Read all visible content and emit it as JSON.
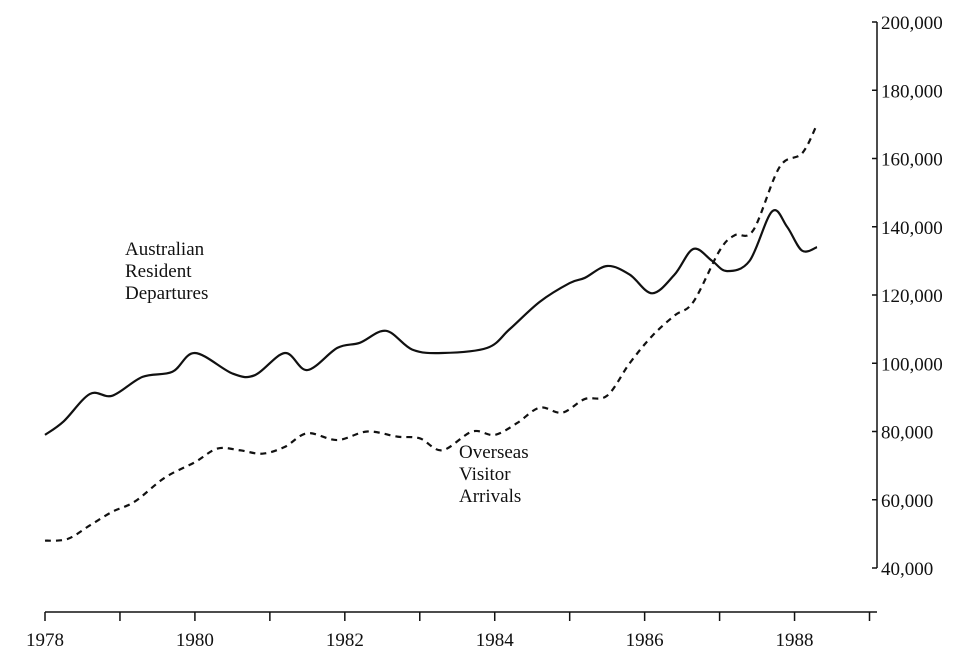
{
  "chart_data": {
    "type": "line",
    "x": [],
    "series": [
      {
        "name": "Australian Resident Departures",
        "color": "#111111",
        "dash": "solid",
        "x": [
          1978.0,
          1978.25,
          1978.6,
          1978.9,
          1979.3,
          1979.7,
          1980.0,
          1980.5,
          1980.8,
          1981.2,
          1981.5,
          1981.9,
          1982.2,
          1982.55,
          1982.9,
          1983.3,
          1983.9,
          1984.2,
          1984.6,
          1985.0,
          1985.2,
          1985.5,
          1985.8,
          1986.1,
          1986.4,
          1986.65,
          1986.9,
          1987.1,
          1987.4,
          1987.7,
          1987.9,
          1988.1,
          1988.3
        ],
        "values": [
          79000,
          83000,
          91000,
          90500,
          96000,
          97500,
          103000,
          97000,
          96500,
          103000,
          98000,
          104500,
          106000,
          109500,
          104000,
          103000,
          104500,
          110000,
          118000,
          123500,
          125000,
          128500,
          126000,
          120500,
          126000,
          133500,
          130000,
          127000,
          130000,
          144500,
          140000,
          133000,
          134000
        ]
      },
      {
        "name": "Overseas Visitor Arrivals",
        "color": "#111111",
        "dash": "dashed",
        "x": [
          1978.0,
          1978.3,
          1978.6,
          1978.9,
          1979.2,
          1979.6,
          1980.0,
          1980.3,
          1980.6,
          1980.9,
          1981.2,
          1981.5,
          1981.9,
          1982.3,
          1982.7,
          1983.0,
          1983.3,
          1983.7,
          1984.0,
          1984.3,
          1984.6,
          1984.9,
          1985.2,
          1985.5,
          1985.8,
          1986.1,
          1986.4,
          1986.65,
          1987.0,
          1987.2,
          1987.45,
          1987.8,
          1988.1,
          1988.3
        ],
        "values": [
          48000,
          48500,
          52500,
          56500,
          59500,
          66500,
          71000,
          75000,
          74500,
          73500,
          75500,
          79500,
          77500,
          80000,
          78500,
          78000,
          74500,
          80000,
          79000,
          82500,
          87000,
          85500,
          89500,
          90500,
          100000,
          108000,
          114000,
          118000,
          133000,
          137500,
          139000,
          157500,
          161500,
          170000
        ]
      }
    ],
    "xlim": [
      1978,
      1989.1
    ],
    "xticks": [
      1978,
      1980,
      1982,
      1984,
      1986,
      1988
    ],
    "xminor_ticks": [
      1979,
      1981,
      1983,
      1985,
      1987,
      1989
    ],
    "ylim": [
      40000,
      200000
    ],
    "yticks": [
      {
        "value": 40000,
        "label": "40,000"
      },
      {
        "value": 60000,
        "label": "60,000"
      },
      {
        "value": 80000,
        "label": "80,000"
      },
      {
        "value": 100000,
        "label": "100,000"
      },
      {
        "value": 120000,
        "label": "120,000"
      },
      {
        "value": 140000,
        "label": "140,000"
      },
      {
        "value": 160000,
        "label": "160,000"
      },
      {
        "value": 180000,
        "label": "180,000"
      },
      {
        "value": 200000,
        "label": "200,000"
      }
    ],
    "y_axis_side": "right",
    "grid": false
  }
}
